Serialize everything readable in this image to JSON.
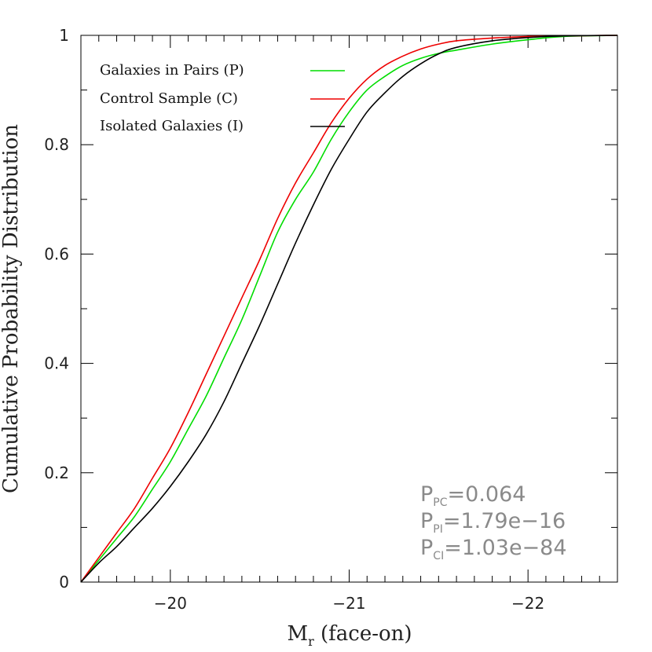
{
  "chart_data": {
    "type": "line",
    "title": "",
    "xlabel": "M",
    "xlabel_subscript": "r",
    "xlabel_suffix": "(face-on)",
    "ylabel": "Cumulative Probability Distribution",
    "xlim": [
      -19.5,
      -22.5
    ],
    "ylim": [
      0,
      1
    ],
    "x_reversed": true,
    "x_major_ticks": [
      -20,
      -21,
      -22
    ],
    "x_tick_labels": [
      "−20",
      "−21",
      "−22"
    ],
    "x_minor_step": 0.1,
    "y_major_ticks": [
      0,
      0.2,
      0.4,
      0.6,
      0.8,
      1
    ],
    "y_tick_labels": [
      "0",
      "0.2",
      "0.4",
      "0.6",
      "0.8",
      "1"
    ],
    "y_minor_step": 0.1,
    "grid": false,
    "legend_position": "top-left",
    "series": [
      {
        "name": "Galaxies in Pairs (P)",
        "color": "#00dd00",
        "x": [
          -19.5,
          -19.6,
          -19.7,
          -19.8,
          -19.9,
          -20.0,
          -20.1,
          -20.2,
          -20.3,
          -20.4,
          -20.5,
          -20.6,
          -20.7,
          -20.8,
          -20.9,
          -21.0,
          -21.1,
          -21.2,
          -21.3,
          -21.4,
          -21.5,
          -21.6,
          -21.8,
          -22.0,
          -22.2,
          -22.5
        ],
        "y": [
          0.0,
          0.04,
          0.08,
          0.12,
          0.17,
          0.22,
          0.28,
          0.34,
          0.41,
          0.48,
          0.56,
          0.64,
          0.7,
          0.75,
          0.81,
          0.86,
          0.9,
          0.925,
          0.945,
          0.958,
          0.967,
          0.973,
          0.984,
          0.992,
          0.998,
          1.0
        ]
      },
      {
        "name": "Control Sample (C)",
        "color": "#ee0000",
        "x": [
          -19.5,
          -19.6,
          -19.7,
          -19.8,
          -19.9,
          -20.0,
          -20.1,
          -20.2,
          -20.3,
          -20.4,
          -20.5,
          -20.6,
          -20.7,
          -20.8,
          -20.9,
          -21.0,
          -21.1,
          -21.2,
          -21.3,
          -21.4,
          -21.5,
          -21.6,
          -21.8,
          -22.0,
          -22.2,
          -22.5
        ],
        "y": [
          0.0,
          0.045,
          0.09,
          0.135,
          0.19,
          0.245,
          0.31,
          0.38,
          0.45,
          0.52,
          0.59,
          0.665,
          0.73,
          0.785,
          0.84,
          0.885,
          0.92,
          0.945,
          0.962,
          0.975,
          0.984,
          0.99,
          0.995,
          0.998,
          0.999,
          1.0
        ]
      },
      {
        "name": "Isolated Galaxies (I)",
        "color": "#000000",
        "x": [
          -19.5,
          -19.6,
          -19.7,
          -19.8,
          -19.9,
          -20.0,
          -20.1,
          -20.2,
          -20.3,
          -20.4,
          -20.5,
          -20.6,
          -20.7,
          -20.8,
          -20.9,
          -21.0,
          -21.1,
          -21.2,
          -21.3,
          -21.4,
          -21.5,
          -21.6,
          -21.8,
          -22.0,
          -22.2,
          -22.5
        ],
        "y": [
          0.0,
          0.035,
          0.065,
          0.1,
          0.135,
          0.175,
          0.22,
          0.27,
          0.33,
          0.4,
          0.47,
          0.545,
          0.62,
          0.69,
          0.755,
          0.81,
          0.86,
          0.895,
          0.925,
          0.948,
          0.966,
          0.978,
          0.99,
          0.996,
          0.999,
          1.0
        ]
      }
    ],
    "annotations": [
      {
        "prefix": "P",
        "sub": "PC",
        "value": "=0.064"
      },
      {
        "prefix": "P",
        "sub": "PI",
        "value": "=1.79e−16"
      },
      {
        "prefix": "P",
        "sub": "CI",
        "value": "=1.03e−84"
      }
    ]
  }
}
